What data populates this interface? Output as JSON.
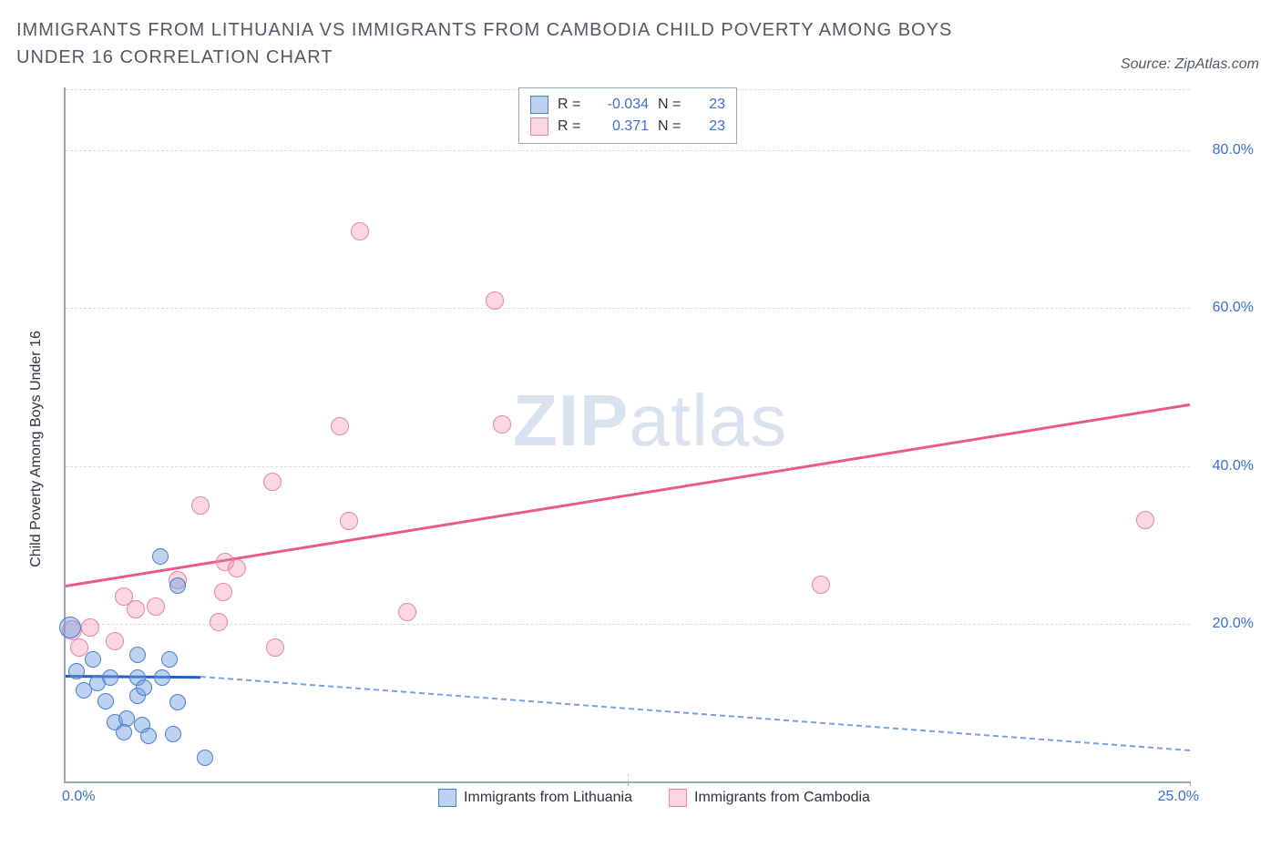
{
  "title": "IMMIGRANTS FROM LITHUANIA VS IMMIGRANTS FROM CAMBODIA CHILD POVERTY AMONG BOYS UNDER 16 CORRELATION CHART",
  "source": "Source: ZipAtlas.com",
  "ylabel": "Child Poverty Among Boys Under 16",
  "watermark_a": "ZIP",
  "watermark_b": "atlas",
  "chart": {
    "type": "scatter",
    "xlim": [
      0,
      25
    ],
    "ylim": [
      0,
      88
    ],
    "ytick_values": [
      20,
      40,
      60,
      80
    ],
    "ytick_labels": [
      "20.0%",
      "40.0%",
      "60.0%",
      "80.0%"
    ],
    "xtick_left": "0.0%",
    "xtick_right": "25.0%",
    "x_tick_marks": [
      12.5,
      25
    ],
    "background_color": "#ffffff",
    "grid_color": "#d6dde6",
    "axis_color": "#9aa7b8"
  },
  "series": {
    "blue": {
      "label": "Immigrants from Lithuania",
      "fill": "rgba(108,156,224,0.45)",
      "stroke": "#4a7ed0",
      "r_label": "R =",
      "r_value": "-0.034",
      "n_label": "N =",
      "n_value": "23",
      "marker_radius": 9,
      "points": [
        {
          "x": 0.1,
          "y": 19.5,
          "r": 12
        },
        {
          "x": 0.25,
          "y": 14.0
        },
        {
          "x": 0.4,
          "y": 11.5
        },
        {
          "x": 0.6,
          "y": 15.5
        },
        {
          "x": 0.7,
          "y": 12.5
        },
        {
          "x": 0.9,
          "y": 10.2
        },
        {
          "x": 1.0,
          "y": 13.2
        },
        {
          "x": 1.1,
          "y": 7.5
        },
        {
          "x": 1.35,
          "y": 8.0
        },
        {
          "x": 1.3,
          "y": 6.2
        },
        {
          "x": 1.6,
          "y": 16.0
        },
        {
          "x": 1.6,
          "y": 13.2
        },
        {
          "x": 1.6,
          "y": 10.8
        },
        {
          "x": 1.75,
          "y": 11.9
        },
        {
          "x": 1.7,
          "y": 7.2
        },
        {
          "x": 1.85,
          "y": 5.8
        },
        {
          "x": 2.1,
          "y": 28.5
        },
        {
          "x": 2.15,
          "y": 13.2
        },
        {
          "x": 2.3,
          "y": 15.5
        },
        {
          "x": 2.5,
          "y": 10.0
        },
        {
          "x": 2.4,
          "y": 6.0
        },
        {
          "x": 2.5,
          "y": 24.8
        },
        {
          "x": 3.1,
          "y": 3.0
        }
      ],
      "trend_solid": {
        "x1": 0,
        "y1": 13.5,
        "x2": 3.0,
        "y2": 13.35
      },
      "trend_dashed": {
        "x1": 3.0,
        "y1": 13.35,
        "x2": 25,
        "y2": 4.0
      }
    },
    "pink": {
      "label": "Immigrants from Cambodia",
      "fill": "rgba(240,140,170,0.35)",
      "stroke": "#e685a6",
      "r_label": "R =",
      "r_value": "0.371",
      "n_label": "N =",
      "n_value": "23",
      "marker_radius": 10,
      "points": [
        {
          "x": 0.15,
          "y": 19.2,
          "r": 11
        },
        {
          "x": 0.3,
          "y": 17.0
        },
        {
          "x": 0.55,
          "y": 19.5
        },
        {
          "x": 1.1,
          "y": 17.8
        },
        {
          "x": 1.3,
          "y": 23.5
        },
        {
          "x": 1.55,
          "y": 21.8
        },
        {
          "x": 2.0,
          "y": 22.2
        },
        {
          "x": 2.5,
          "y": 25.5
        },
        {
          "x": 3.0,
          "y": 35.0
        },
        {
          "x": 3.4,
          "y": 20.2
        },
        {
          "x": 3.5,
          "y": 24.0
        },
        {
          "x": 3.55,
          "y": 27.8
        },
        {
          "x": 3.8,
          "y": 27.0
        },
        {
          "x": 4.6,
          "y": 38.0
        },
        {
          "x": 4.65,
          "y": 17.0
        },
        {
          "x": 6.1,
          "y": 45.0
        },
        {
          "x": 6.3,
          "y": 33.0
        },
        {
          "x": 6.55,
          "y": 69.8
        },
        {
          "x": 7.6,
          "y": 21.5
        },
        {
          "x": 9.55,
          "y": 61.0
        },
        {
          "x": 9.7,
          "y": 45.3
        },
        {
          "x": 16.8,
          "y": 25.0
        },
        {
          "x": 24.0,
          "y": 33.2
        }
      ],
      "trend_solid": {
        "x1": 0,
        "y1": 25.0,
        "x2": 25,
        "y2": 48.0
      }
    }
  },
  "legend_swatch_blue": {
    "fill": "rgba(108,156,224,0.45)",
    "stroke": "#4a7ed0"
  },
  "legend_swatch_pink": {
    "fill": "rgba(240,140,170,0.35)",
    "stroke": "#e685a6"
  }
}
